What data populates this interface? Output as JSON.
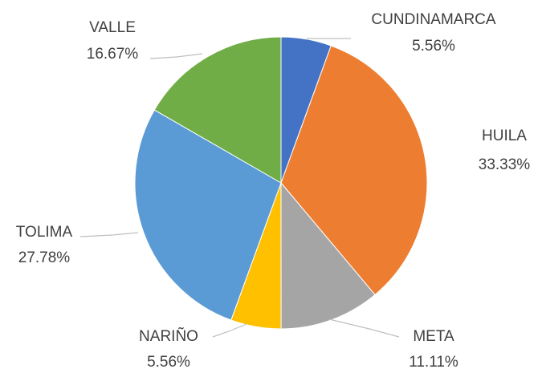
{
  "chart_data": {
    "type": "pie",
    "categories": [
      "CUNDINAMARCA",
      "HUILA",
      "META",
      "NARIÑO",
      "TOLIMA",
      "VALLE"
    ],
    "values": [
      5.56,
      33.33,
      11.11,
      5.56,
      27.78,
      16.67
    ],
    "value_labels": [
      "5.56%",
      "33.33%",
      "11.11%",
      "5.56%",
      "27.78%",
      "16.67%"
    ],
    "colors": [
      "#4472c4",
      "#ed7d31",
      "#a5a5a5",
      "#ffc000",
      "#5b9bd5",
      "#70ad47"
    ]
  }
}
